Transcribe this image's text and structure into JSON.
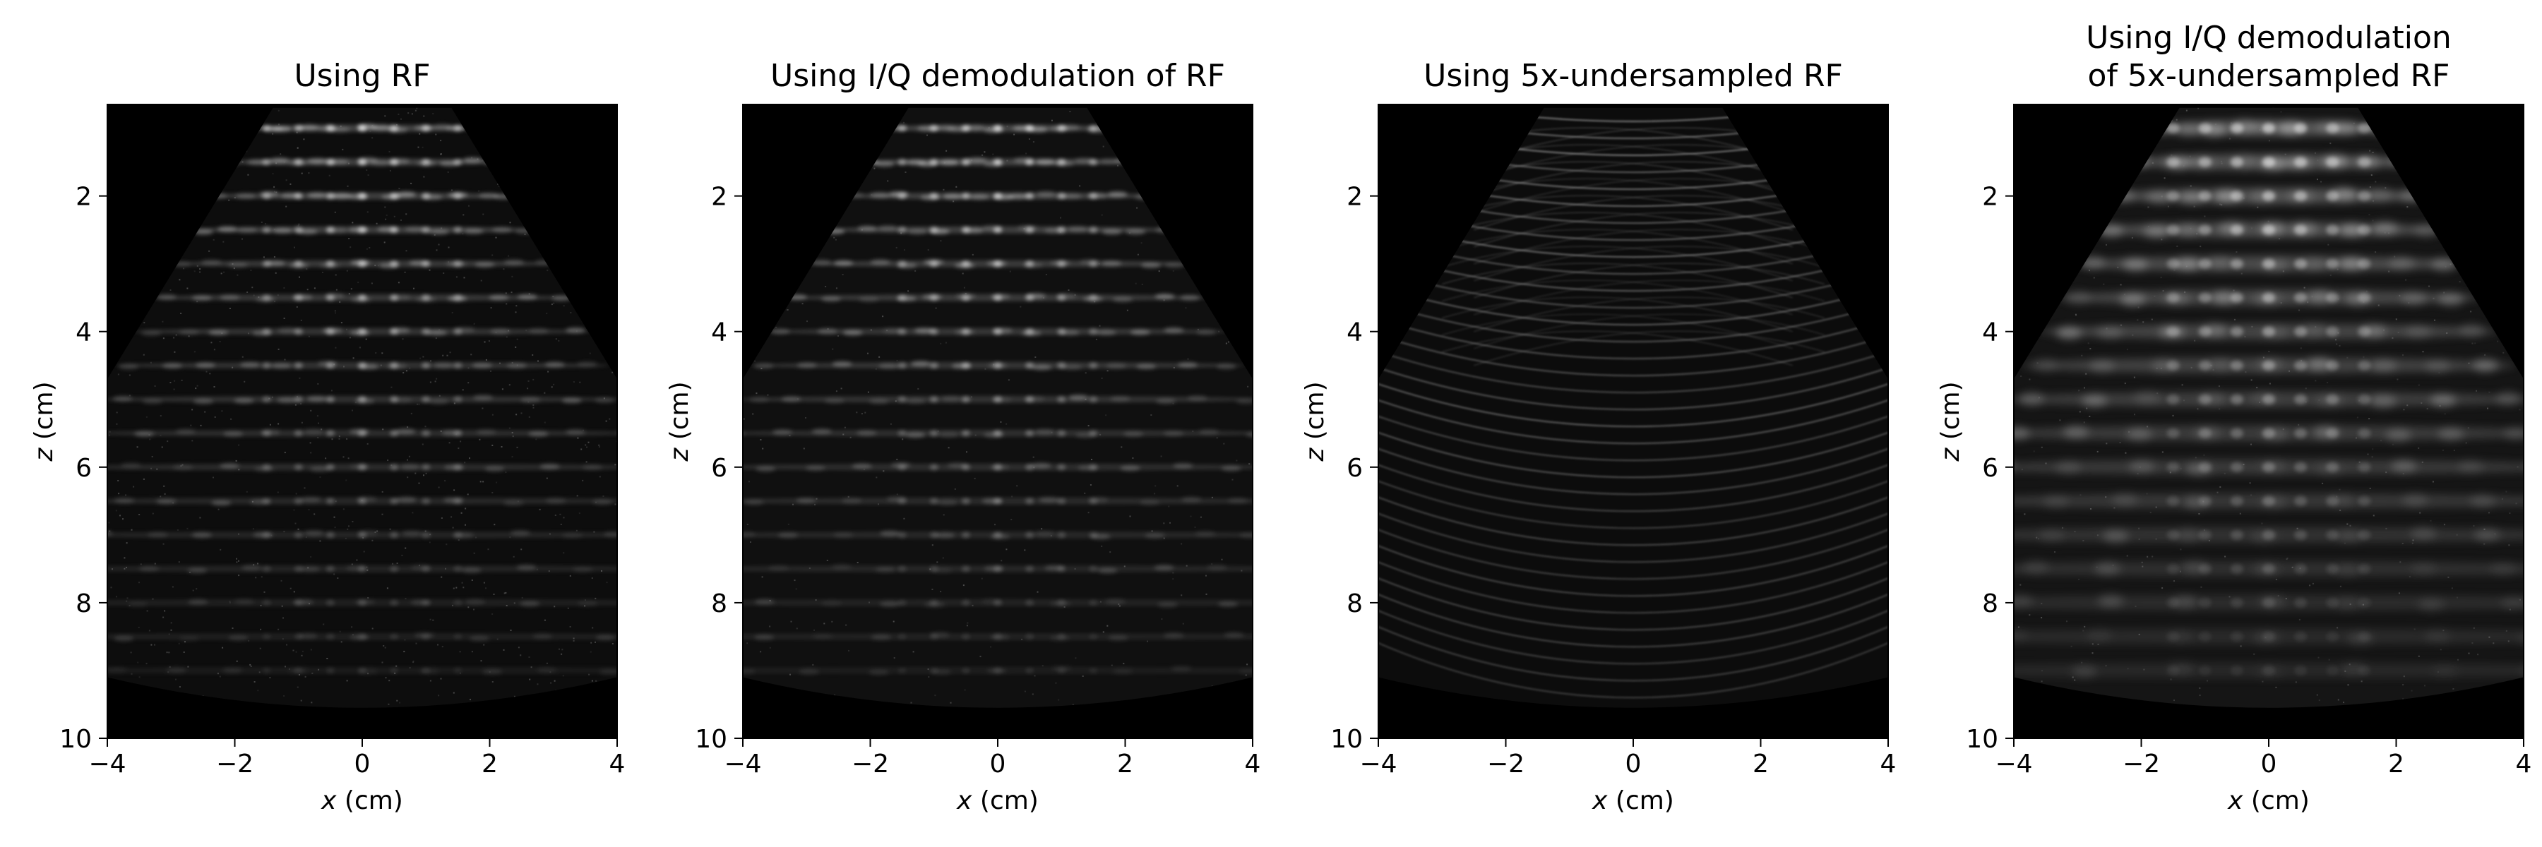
{
  "chart_data": [
    {
      "type": "heatmap",
      "title_lines": [
        "Using RF"
      ],
      "xlabel_var": "x",
      "xlabel_unit": " (cm)",
      "ylabel_var": "z",
      "ylabel_unit": " (cm)",
      "xlim": [
        -4,
        4
      ],
      "ylim": [
        10,
        0.65
      ],
      "y_inverted": true,
      "xticks": [
        -4,
        -2,
        0,
        2,
        4
      ],
      "yticks": [
        2,
        4,
        6,
        8,
        10
      ],
      "colormap": "gray",
      "grid": false,
      "fan": {
        "top_z": 0.7,
        "top_halfwidth": 1.4,
        "side_bottom_z": 4.7,
        "bottom_z": 9.4,
        "bottom_edge_z": 9.1
      },
      "point_targets": {
        "x": [
          -1.5,
          -1.0,
          -0.5,
          0,
          0.5,
          1.0,
          1.5
        ],
        "z_start": 1.0,
        "z_step": 0.5
      },
      "texture": "speckle"
    },
    {
      "type": "heatmap",
      "title_lines": [
        "Using I/Q demodulation of RF"
      ],
      "xlabel_var": "x",
      "xlabel_unit": " (cm)",
      "ylabel_var": "z",
      "ylabel_unit": " (cm)",
      "xlim": [
        -4,
        4
      ],
      "ylim": [
        10,
        0.65
      ],
      "y_inverted": true,
      "xticks": [
        -4,
        -2,
        0,
        2,
        4
      ],
      "yticks": [
        2,
        4,
        6,
        8,
        10
      ],
      "colormap": "gray",
      "grid": false,
      "fan": {
        "top_z": 0.7,
        "top_halfwidth": 1.4,
        "side_bottom_z": 4.7,
        "bottom_z": 9.4,
        "bottom_edge_z": 9.1
      },
      "point_targets": {
        "x": [
          -1.5,
          -1.0,
          -0.5,
          0,
          0.5,
          1.0,
          1.5
        ],
        "z_start": 1.0,
        "z_step": 0.5
      },
      "texture": "smooth"
    },
    {
      "type": "heatmap",
      "title_lines": [
        "Using 5x-undersampled RF"
      ],
      "xlabel_var": "x",
      "xlabel_unit": " (cm)",
      "ylabel_var": "z",
      "ylabel_unit": " (cm)",
      "xlim": [
        -4,
        4
      ],
      "ylim": [
        10,
        0.65
      ],
      "y_inverted": true,
      "xticks": [
        -4,
        -2,
        0,
        2,
        4
      ],
      "yticks": [
        2,
        4,
        6,
        8,
        10
      ],
      "colormap": "gray",
      "grid": false,
      "fan": {
        "top_z": 0.7,
        "top_halfwidth": 1.4,
        "side_bottom_z": 4.7,
        "bottom_z": 9.4,
        "bottom_edge_z": 9.1
      },
      "point_targets": {
        "x": [
          -1.5,
          -1.0,
          -0.5,
          0,
          0.5,
          1.0,
          1.5
        ],
        "z_start": 1.0,
        "z_step": 0.5
      },
      "texture": "arcs"
    },
    {
      "type": "heatmap",
      "title_lines": [
        "Using I/Q demodulation",
        "of 5x-undersampled RF"
      ],
      "xlabel_var": "x",
      "xlabel_unit": " (cm)",
      "ylabel_var": "z",
      "ylabel_unit": " (cm)",
      "xlim": [
        -4,
        4
      ],
      "ylim": [
        10,
        0.65
      ],
      "y_inverted": true,
      "xticks": [
        -4,
        -2,
        0,
        2,
        4
      ],
      "yticks": [
        2,
        4,
        6,
        8,
        10
      ],
      "colormap": "gray",
      "grid": false,
      "fan": {
        "top_z": 0.7,
        "top_halfwidth": 1.4,
        "side_bottom_z": 4.7,
        "bottom_z": 9.4,
        "bottom_edge_z": 9.1
      },
      "point_targets": {
        "x": [
          -1.5,
          -1.0,
          -0.5,
          0,
          0.5,
          1.0,
          1.5
        ],
        "z_start": 1.0,
        "z_step": 0.5
      },
      "texture": "blobs"
    }
  ]
}
